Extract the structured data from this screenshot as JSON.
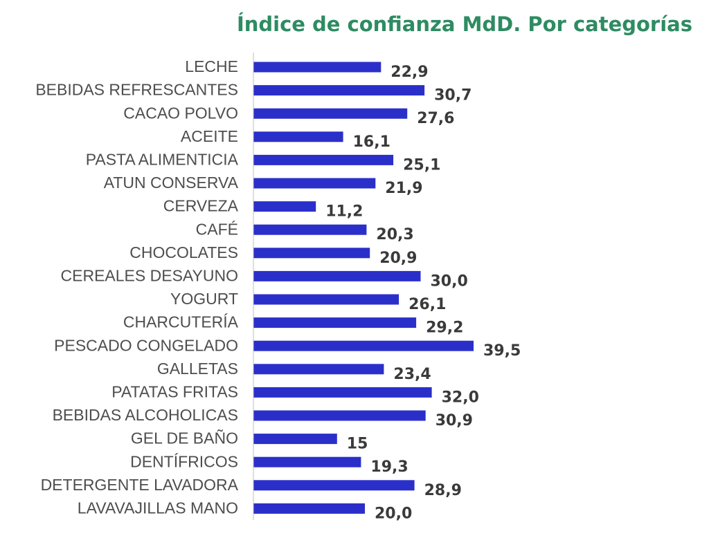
{
  "chart_data": {
    "type": "bar",
    "orientation": "horizontal",
    "title": "Índice de confianza MdD. Por categorías",
    "categories": [
      "LECHE",
      "BEBIDAS REFRESCANTES",
      "CACAO POLVO",
      "ACEITE",
      "PASTA ALIMENTICIA",
      "ATUN CONSERVA",
      "CERVEZA",
      "CAFÉ",
      "CHOCOLATES",
      "CEREALES DESAYUNO",
      "YOGURT",
      "CHARCUTERÍA",
      "PESCADO CONGELADO",
      "GALLETAS",
      "PATATAS FRITAS",
      "BEBIDAS ALCOHOLICAS",
      "GEL DE BAÑO",
      "DENTÍFRICOS",
      "DETERGENTE LAVADORA",
      "LAVAVAJILLAS MANO"
    ],
    "values": [
      22.9,
      30.7,
      27.6,
      16.1,
      25.1,
      21.9,
      11.2,
      20.3,
      20.9,
      30.0,
      26.1,
      29.2,
      39.5,
      23.4,
      32.0,
      30.9,
      15,
      19.3,
      28.9,
      20.0
    ],
    "value_labels": [
      "22,9",
      "30,7",
      "27,6",
      "16,1",
      "25,1",
      "21,9",
      "11,2",
      "20,3",
      "20,9",
      "30,0",
      "26,1",
      "29,2",
      "39,5",
      "23,4",
      "32,0",
      "30,9",
      "15",
      "19,3",
      "28,9",
      "20,0"
    ],
    "xlim": [
      0,
      40
    ],
    "grid": false,
    "legend": "none",
    "colors": {
      "bar": "#2b2fc9",
      "title": "#2e8b62",
      "axis": "#bfbfbf"
    }
  }
}
